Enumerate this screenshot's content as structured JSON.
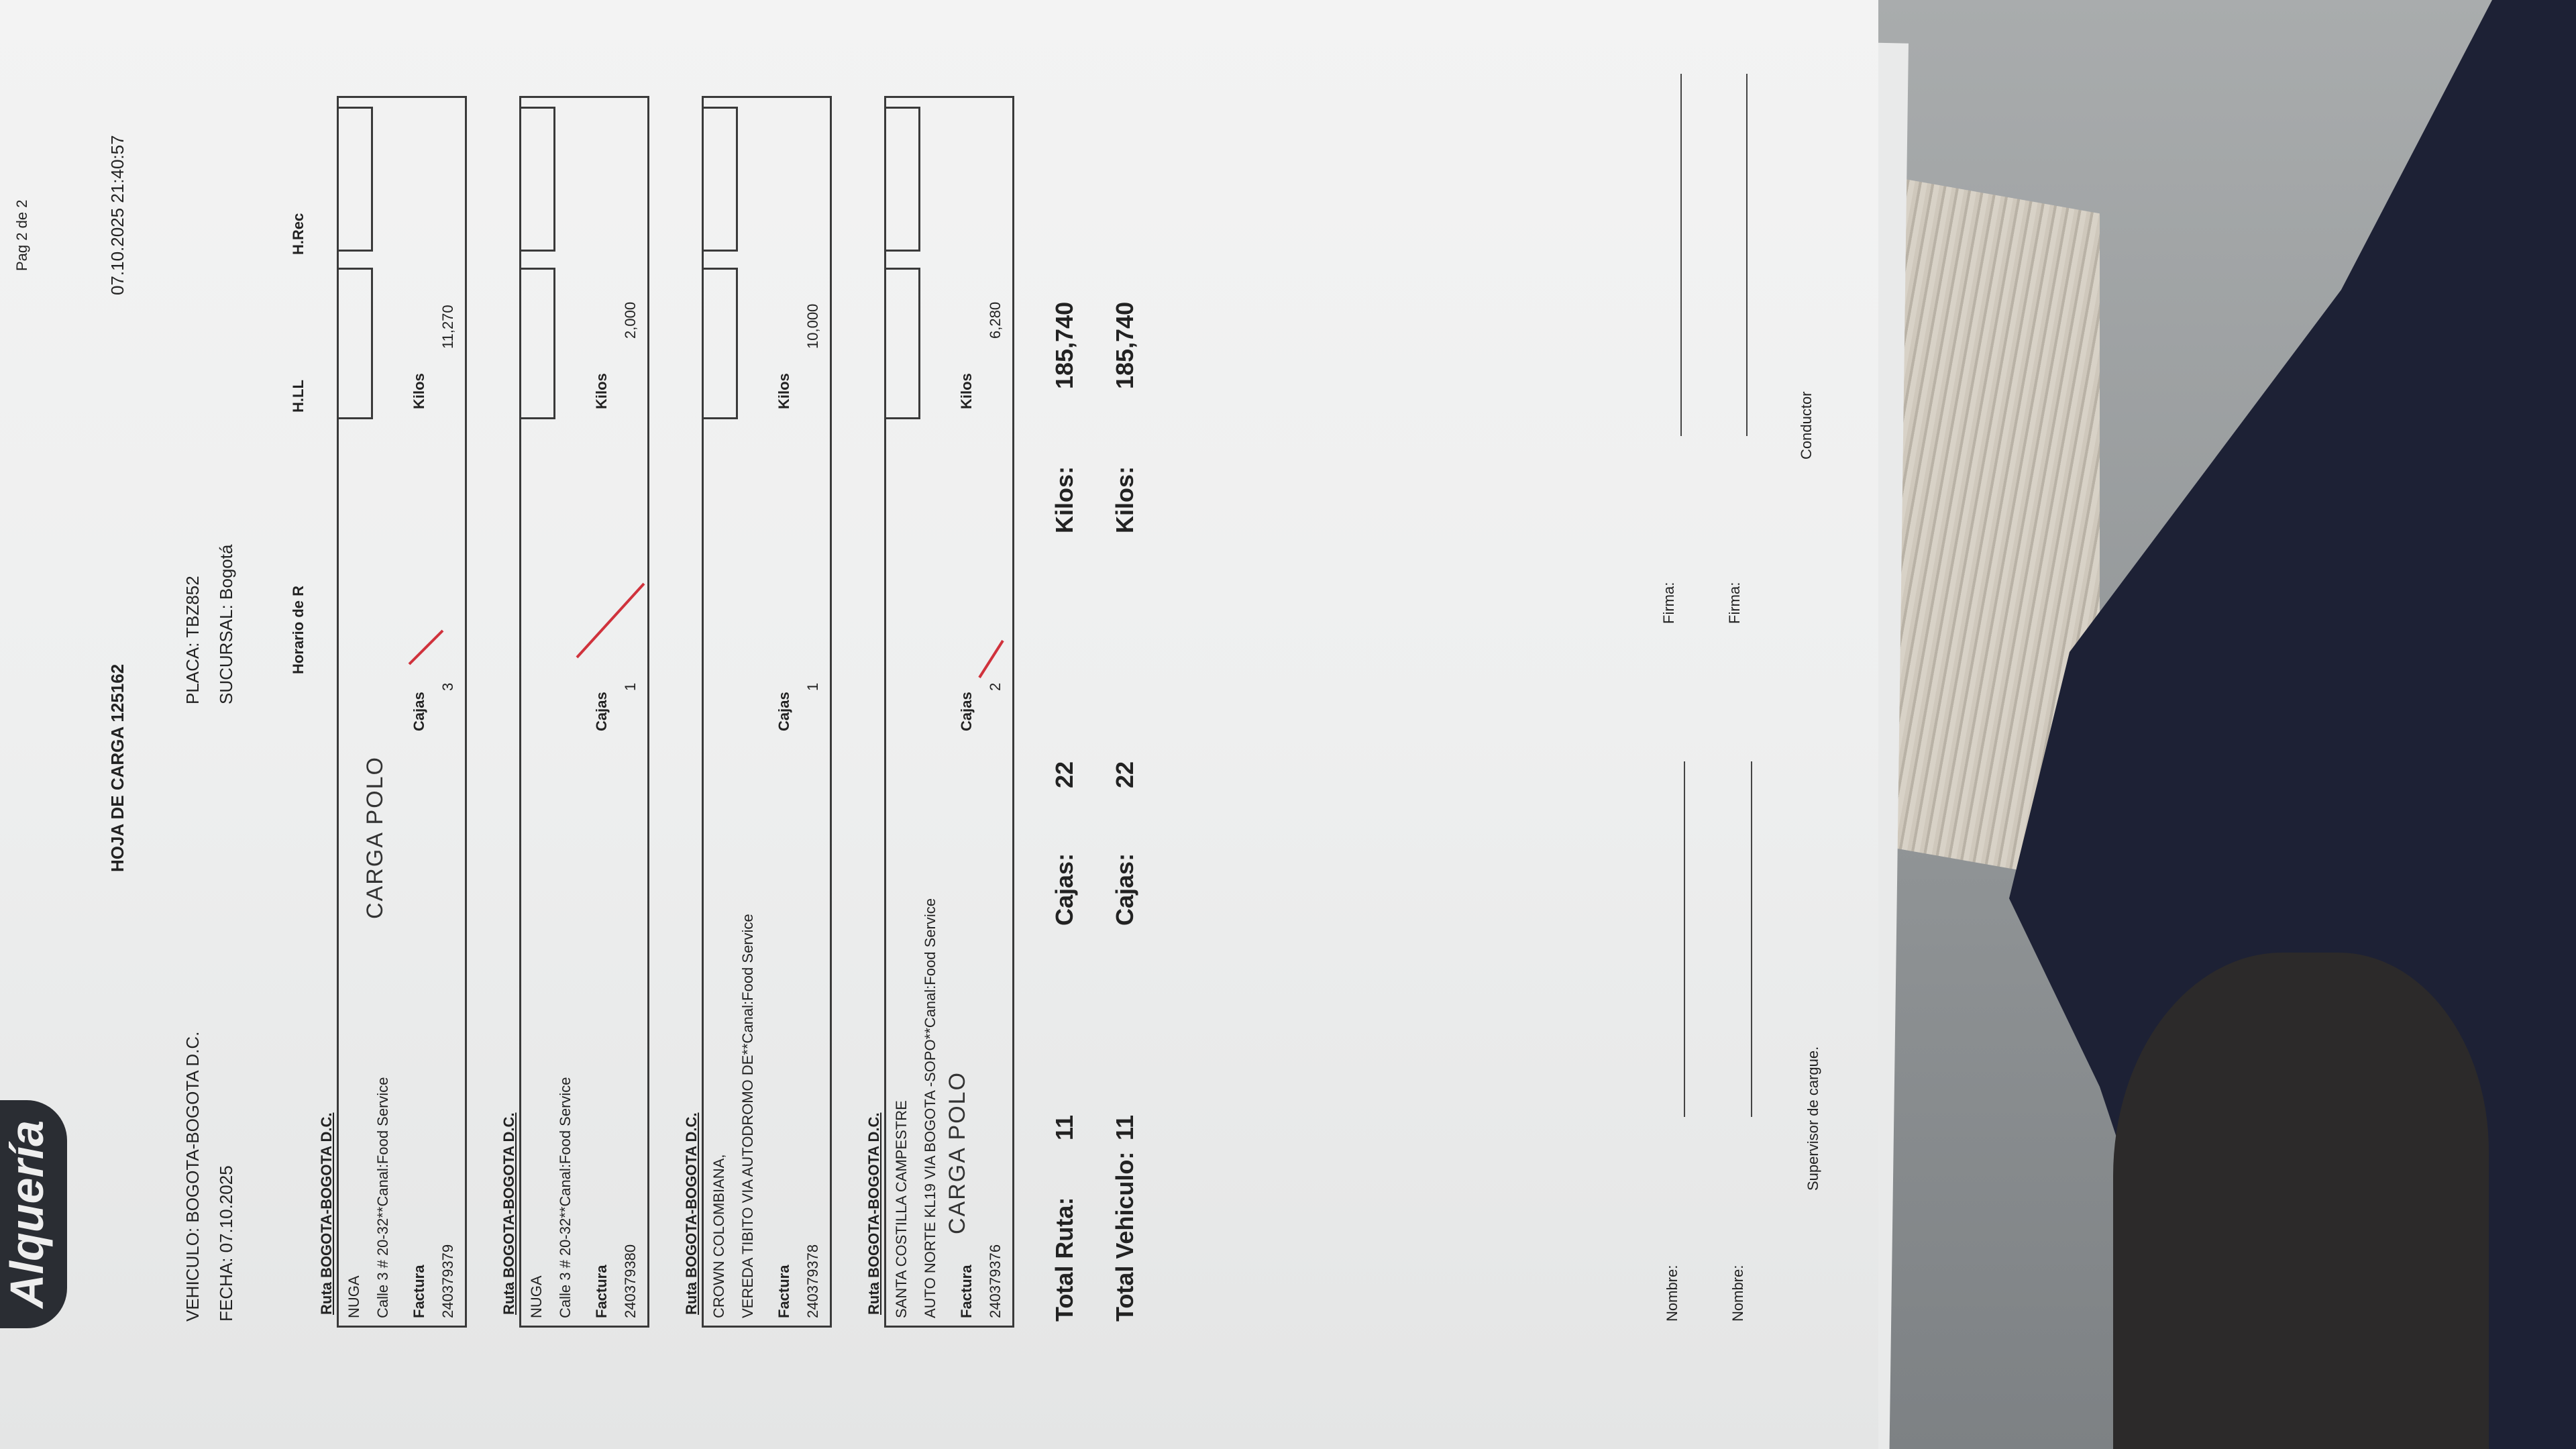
{
  "header": {
    "brand": "Alquería",
    "page": "Pag 2 de 2",
    "title": "HOJA DE CARGA 125162",
    "datetime": "07.10.2025 21:40:57",
    "vehiculo": "VEHICULO: BOGOTA-BOGOTA D.C.",
    "placa": "PLACA: TBZ852",
    "fecha": "FECHA: 07.10.2025",
    "sucursal": "SUCURSAL: Bogotá",
    "col_horario": "Horario de R",
    "col_hll": "H.LL",
    "col_hrec": "H.Rec"
  },
  "labels": {
    "factura": "Factura",
    "cajas": "Cajas",
    "kilos": "Kilos"
  },
  "entries": [
    {
      "ruta": "Ruta BOGOTA-BOGOTA D.C.",
      "cliente": "NUGA",
      "direccion": "Calle 3 # 20-32**Canal:Food Service",
      "factura": "240379379",
      "cajas": "3",
      "kilos": "11,270",
      "note": "CARGA POLO"
    },
    {
      "ruta": "Ruta BOGOTA-BOGOTA D.C.",
      "cliente": "NUGA",
      "direccion": "Calle 3 # 20-32**Canal:Food Service",
      "factura": "240379380",
      "cajas": "1",
      "kilos": "2,000",
      "note": ""
    },
    {
      "ruta": "Ruta BOGOTA-BOGOTA D.C.",
      "cliente": "CROWN COLOMBIANA,",
      "direccion": "VEREDA TIBITO VIA AUTODROMO DE**Canal:Food Service",
      "factura": "240379378",
      "cajas": "1",
      "kilos": "10,000",
      "note": ""
    },
    {
      "ruta": "Ruta BOGOTA-BOGOTA D.C.",
      "cliente": "SANTA COSTILLA CAMPESTRE",
      "direccion": "AUTO NORTE KL19 VIA BOGOTA -SOPO**Canal:Food Service",
      "factura": "240379376",
      "cajas": "2",
      "kilos": "6,280",
      "note": "CARGA POLO"
    }
  ],
  "totals": {
    "ruta_label": "Total Ruta:",
    "ruta_count": "11",
    "ruta_cajas_label": "Cajas:",
    "ruta_cajas": "22",
    "ruta_kilos_label": "Kilos:",
    "ruta_kilos": "185,740",
    "veh_label": "Total Vehiculo:",
    "veh_count": "11",
    "veh_cajas_label": "Cajas:",
    "veh_cajas": "22",
    "veh_kilos_label": "Kilos:",
    "veh_kilos": "185,740"
  },
  "signatures": {
    "nombre": "Nombre:",
    "firma": "Firma:",
    "supervisor": "Supervisor de cargue.",
    "conductor": "Conductor"
  },
  "colors": {
    "ink": "#222222",
    "check_mark": "#d0323c",
    "pants": "#1d2135"
  }
}
